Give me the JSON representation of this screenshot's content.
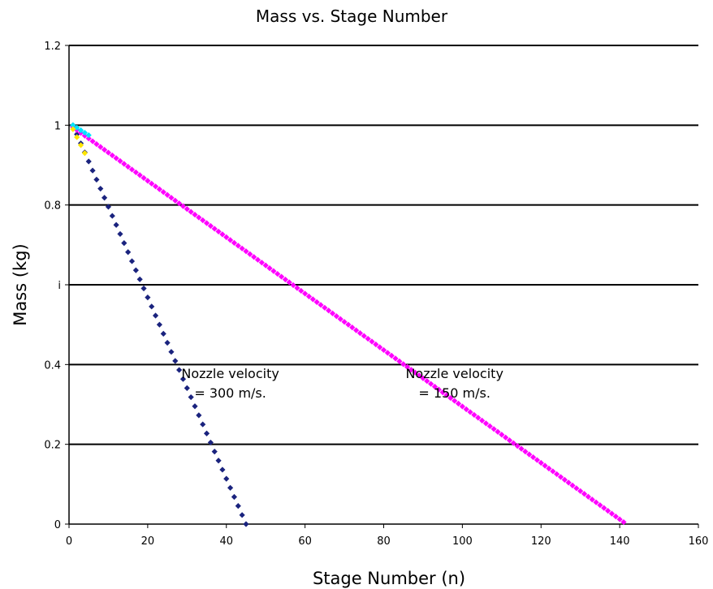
{
  "chart_data": {
    "type": "scatter",
    "title": "Mass vs. Stage Number",
    "xlabel": "Stage Number (n)",
    "ylabel": "Mass (kg)",
    "xlim": [
      0,
      160
    ],
    "ylim": [
      0,
      1.2
    ],
    "x_ticks": [
      "0",
      "20",
      "40",
      "60",
      "80",
      "100",
      "120",
      "140",
      "160"
    ],
    "y_ticks": [
      "0",
      "0.2",
      "0.4",
      "i",
      "0.8",
      "1",
      "1.2"
    ],
    "grid": "horizontal",
    "series": [
      {
        "color": "#1a237e",
        "marker": "diamond",
        "start": [
          1,
          1.0
        ],
        "end": [
          45,
          0.0
        ],
        "count": 45
      },
      {
        "color": "#ff00ff",
        "marker": "diamond",
        "start": [
          1,
          0.995
        ],
        "end": [
          141,
          0.005
        ],
        "count": 141
      },
      {
        "color": "#00e5ff",
        "marker": "diamond",
        "start": [
          1,
          1.0
        ],
        "end": [
          5,
          0.975
        ],
        "count": 5
      },
      {
        "color": "#ffe600",
        "marker": "diamond",
        "start": [
          1,
          0.99
        ],
        "end": [
          4,
          0.93
        ],
        "count": 4
      }
    ],
    "annotations": [
      {
        "lines": [
          "Nozzle velocity",
          "= 300 m/s."
        ],
        "x": 41,
        "y": 0.33
      },
      {
        "lines": [
          "Nozzle velocity",
          "= 150 m/s."
        ],
        "x": 98,
        "y": 0.33
      }
    ]
  }
}
